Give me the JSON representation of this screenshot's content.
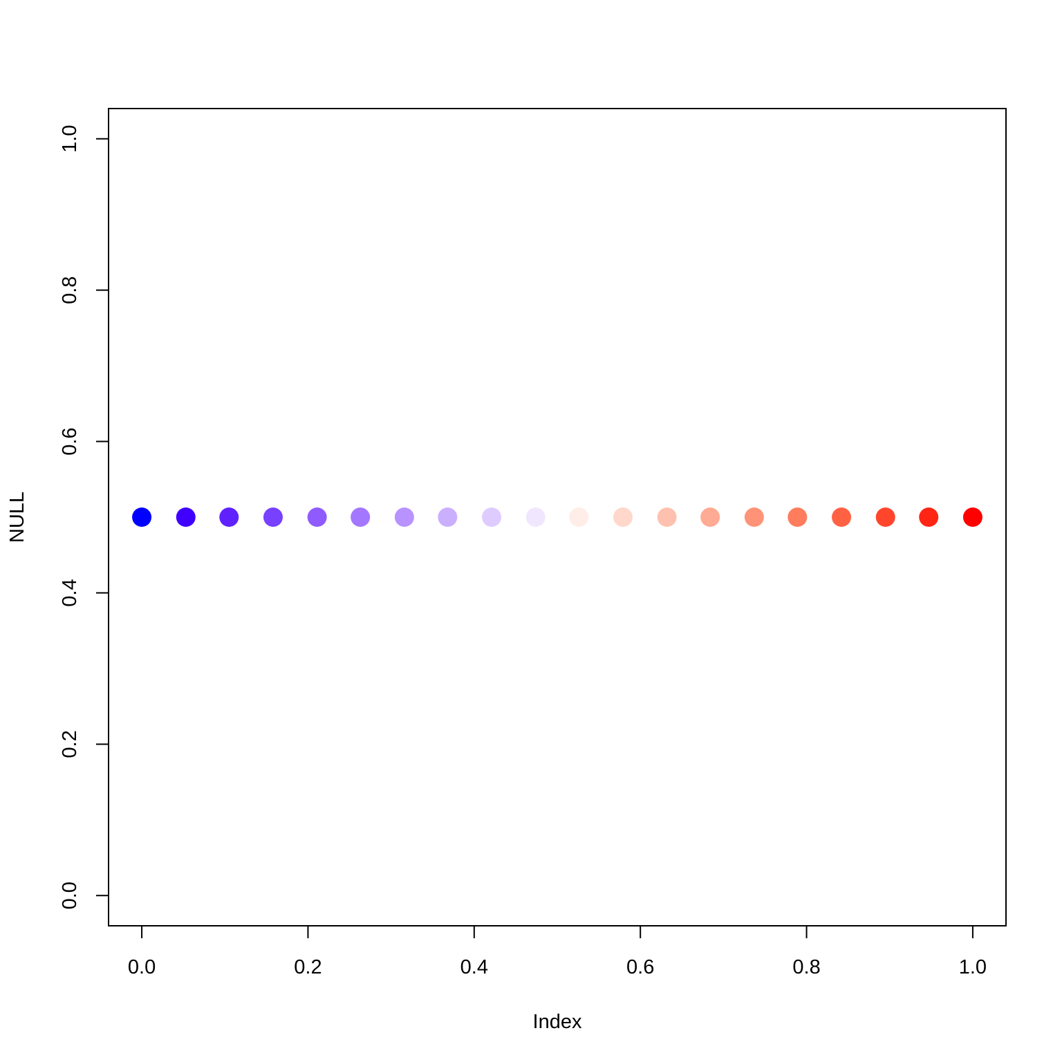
{
  "chart_data": {
    "type": "scatter",
    "xlabel": "Index",
    "ylabel": "NULL",
    "xlim": [
      -0.04,
      1.04
    ],
    "ylim": [
      -0.04,
      1.04
    ],
    "xticks": [
      {
        "value": 0,
        "label": "0.0"
      },
      0.2,
      0.4,
      0.6,
      0.8,
      {
        "value": 1,
        "label": "1.0"
      }
    ],
    "yticks": [
      {
        "value": 0,
        "label": "0.0"
      },
      0.2,
      0.4,
      0.6,
      0.8,
      {
        "value": 1,
        "label": "1.0"
      }
    ],
    "series": [
      {
        "x": [
          0,
          0.053,
          0.105,
          0.158,
          0.211,
          0.263,
          0.316,
          0.368,
          0.421,
          0.474,
          0.526,
          0.579,
          0.632,
          0.684,
          0.737,
          0.789,
          0.842,
          0.895,
          0.947,
          1
        ],
        "values": [
          0.5,
          0.5,
          0.5,
          0.5,
          0.5,
          0.5,
          0.5,
          0.5,
          0.5,
          0.5,
          0.5,
          0.5,
          0.5,
          0.5,
          0.5,
          0.5,
          0.5,
          0.5,
          0.5,
          0.5
        ],
        "colors": [
          "#0000FF",
          "#4000FF",
          "#5F22FF",
          "#7840FF",
          "#8F5BFF",
          "#A477FF",
          "#B893FF",
          "#CBAFFF",
          "#DECBFF",
          "#F0E7FF",
          "#FFEDE7",
          "#FFD7CB",
          "#FFC1AF",
          "#FFAA93",
          "#FF9377",
          "#FF7C5D",
          "#FF6243",
          "#FF462C",
          "#FF2515",
          "#FF0000"
        ]
      }
    ]
  }
}
